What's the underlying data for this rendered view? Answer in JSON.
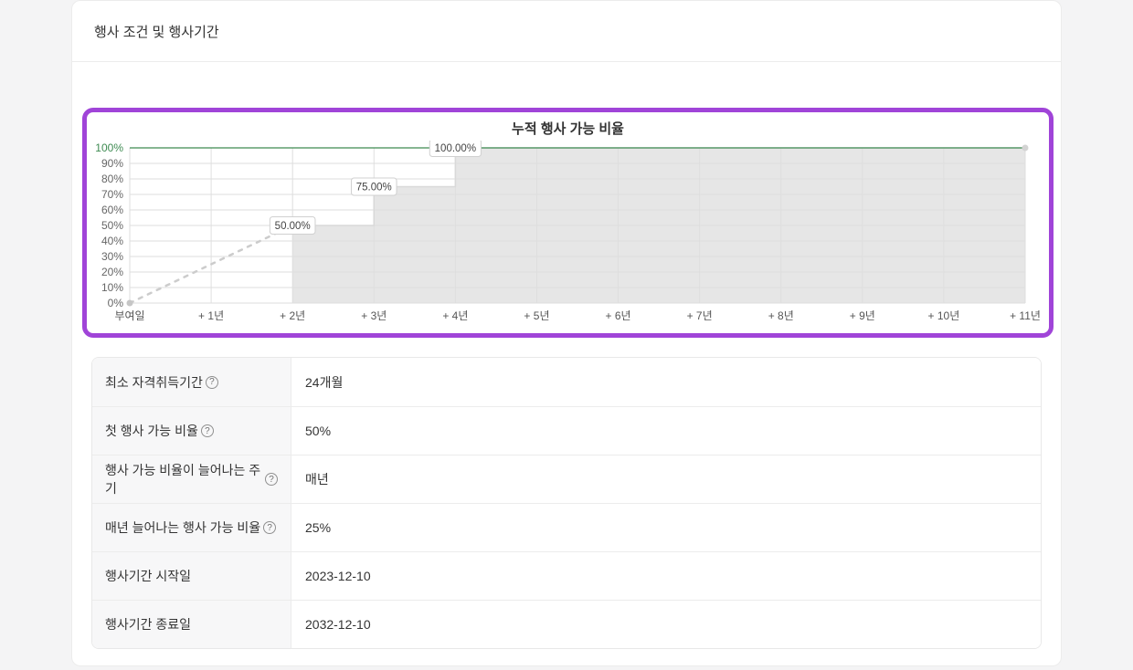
{
  "page": {
    "background": "#f4f4f5"
  },
  "card": {
    "title": "행사 조건 및 행사기간"
  },
  "chart_box": {
    "highlight_border_color": "#a044d8"
  },
  "chart_data": {
    "type": "area",
    "title": "누적 행사 가능 비율",
    "x_labels": [
      "부여일",
      "+ 1년",
      "+ 2년",
      "+ 3년",
      "+ 4년",
      "+ 5년",
      "+ 6년",
      "+ 7년",
      "+ 8년",
      "+ 9년",
      "+ 10년",
      "+ 11년"
    ],
    "y_tick_labels": [
      "0%",
      "10%",
      "20%",
      "30%",
      "40%",
      "50%",
      "60%",
      "70%",
      "80%",
      "90%",
      "100%"
    ],
    "ylim": [
      0,
      100
    ],
    "grid": true,
    "legend": "none",
    "series": [
      {
        "name": "vesting-cliff-line",
        "type": "line",
        "style": "dashed",
        "points": [
          [
            0,
            0
          ],
          [
            2,
            50
          ]
        ]
      },
      {
        "name": "vested-ratio-area",
        "type": "step-area",
        "style": "solid",
        "points": [
          [
            2,
            50
          ],
          [
            3,
            75
          ],
          [
            4,
            100
          ],
          [
            11,
            100
          ]
        ]
      }
    ],
    "annotations": [
      {
        "x": 2,
        "y": 50,
        "label": "50.00%"
      },
      {
        "x": 3,
        "y": 75,
        "label": "75.00%"
      },
      {
        "x": 4,
        "y": 100,
        "label": "100.00%"
      }
    ],
    "colors": {
      "grid": "#dedede",
      "hundred_line": "#3e8b52",
      "hundred_tick": "#3e8b52",
      "area_fill": "#e6e6e6",
      "area_edge": "#d9d9d9",
      "dashed_line": "#cccccc",
      "point_dot": "#c6c6c6",
      "end_dot": "#d3d3d3",
      "tick_text": "#666666",
      "x_label_text": "#555555",
      "annotation_text": "#444444",
      "annotation_border": "#d0d0d0"
    }
  },
  "table": {
    "help_icon": "?",
    "rows": [
      {
        "label": "최소 자격취득기간",
        "help": true,
        "value": "24개월"
      },
      {
        "label": "첫 행사 가능 비율",
        "help": true,
        "value": "50%"
      },
      {
        "label": "행사 가능 비율이 늘어나는 주기",
        "help": true,
        "value": "매년"
      },
      {
        "label": "매년 늘어나는 행사 가능 비율",
        "help": true,
        "value": "25%"
      },
      {
        "label": "행사기간 시작일",
        "help": false,
        "value": "2023-12-10"
      },
      {
        "label": "행사기간 종료일",
        "help": false,
        "value": "2032-12-10"
      }
    ]
  }
}
